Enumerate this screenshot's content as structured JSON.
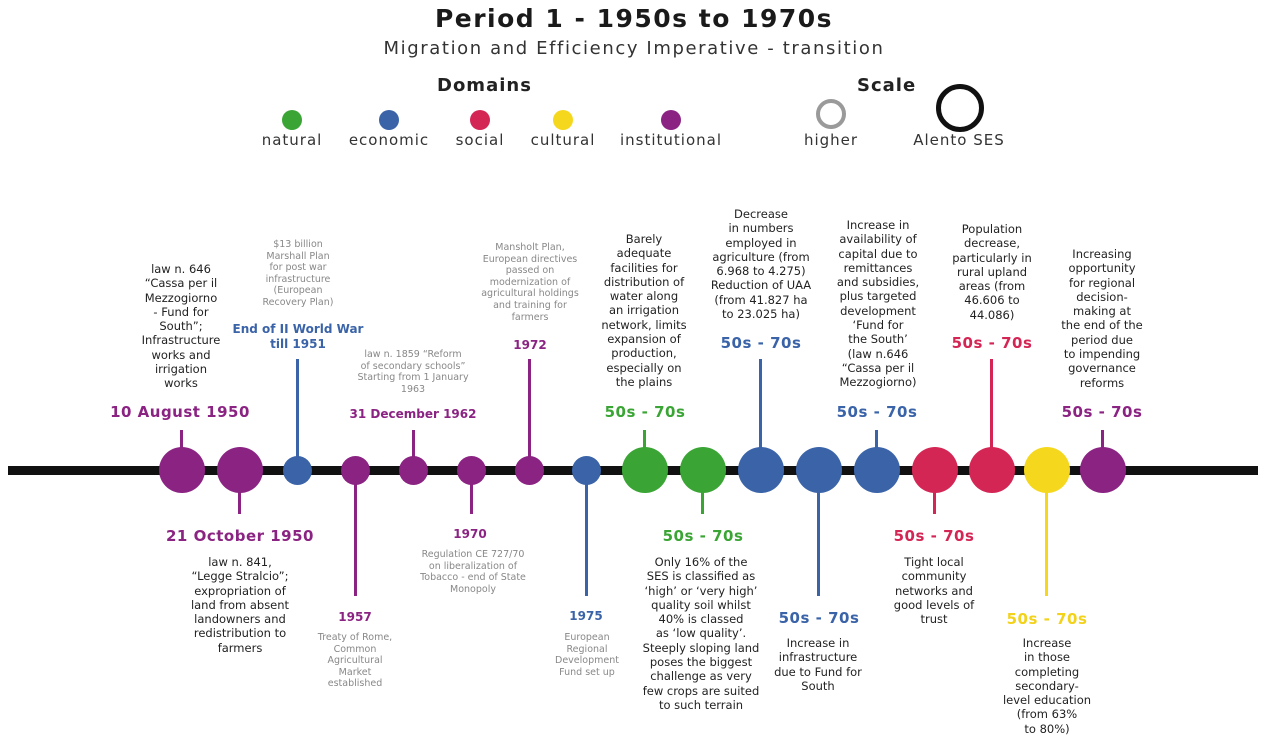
{
  "title": "Period 1 - 1950s to 1970s",
  "subtitle": "Migration and Efficiency Imperative - transition",
  "legend": {
    "domains_title": "Domains",
    "scale_title": "Scale",
    "domains": [
      {
        "label": "natural",
        "color": "#3AA535"
      },
      {
        "label": "economic",
        "color": "#3A63A8"
      },
      {
        "label": "social",
        "color": "#D42655"
      },
      {
        "label": "cultural",
        "color": "#F5D81E"
      },
      {
        "label": "institutional",
        "color": "#8B2383"
      }
    ],
    "scale": [
      {
        "label": "higher"
      },
      {
        "label": "Alento SES"
      }
    ]
  },
  "events": [
    {
      "date": "10 August  1950",
      "text": "law n. 646\n“Cassa per il\nMezzogiorno\n- Fund for\nSouth”;\nInfrastructure\nworks and\nirrigation\nworks",
      "domain": "institutional",
      "scale": "Alento SES"
    },
    {
      "date": "21 October 1950",
      "text": "law n. 841,\n“Legge Stralcio”;\nexpropriation of\nland from absent\nlandowners and\nredistribution to\nfarmers",
      "domain": "institutional",
      "scale": "Alento SES"
    },
    {
      "date": "End of II World War\ntill 1951",
      "text": "$13 billion\nMarshall Plan\nfor post war\ninfrastructure\n(European\nRecovery Plan)",
      "domain": "economic",
      "scale": "higher"
    },
    {
      "date": "1957",
      "text": "Treaty of Rome,\nCommon\nAgricultural\nMarket\nestablished",
      "domain": "institutional",
      "scale": "higher"
    },
    {
      "date": "31 December 1962",
      "text": "law n. 1859 “Reform\nof secondary schools”\nStarting from 1 January\n1963",
      "domain": "institutional",
      "scale": "higher"
    },
    {
      "date": "1970",
      "text": "Regulation CE 727/70\non liberalization of\nTobacco - end of State\nMonopoly",
      "domain": "institutional",
      "scale": "higher"
    },
    {
      "date": "1972",
      "text": "Mansholt Plan,\nEuropean directives\npassed on\nmodernization of\nagricultural holdings\nand training for\nfarmers",
      "domain": "institutional",
      "scale": "higher"
    },
    {
      "date": "1975",
      "text": "European\nRegional\nDevelopment\nFund set up",
      "domain": "economic",
      "scale": "higher"
    },
    {
      "date": "50s - 70s",
      "text": "Barely\nadequate\nfacilities for\ndistribution of\nwater along\nan irrigation\nnetwork, limits\nexpansion of\nproduction,\nespecially on\nthe plains",
      "domain": "natural",
      "scale": "Alento SES"
    },
    {
      "date": "50s - 70s",
      "text": "Only 16% of the\nSES is classified as\n‘high’ or ‘very high’\nquality soil whilst\n40% is classed\nas ‘low quality’.\nSteeply sloping land\nposes the biggest\nchallenge as very\nfew crops are suited\nto such terrain",
      "domain": "natural",
      "scale": "Alento SES"
    },
    {
      "date": "50s - 70s",
      "text": "Decrease\nin numbers\nemployed in\nagriculture (from\n6.968 to 4.275)\nReduction of UAA\n(from 41.827 ha\nto 23.025 ha)",
      "domain": "economic",
      "scale": "Alento SES"
    },
    {
      "date": "50s - 70s",
      "text": "Increase in\ninfrastructure\ndue to Fund for\nSouth",
      "domain": "economic",
      "scale": "Alento SES"
    },
    {
      "date": "50s - 70s",
      "text": "Increase in\navailability of\ncapital due to\nremittances\nand subsidies,\nplus targeted\ndevelopment\n‘Fund for\nthe South’\n(law n.646\n“Cassa per il\nMezzogiorno)",
      "domain": "economic",
      "scale": "Alento SES"
    },
    {
      "date": "50s - 70s",
      "text": "Tight local\ncommunity\nnetworks and\ngood levels of\ntrust",
      "domain": "social",
      "scale": "Alento SES"
    },
    {
      "date": "50s - 70s",
      "text": "Population\ndecrease,\nparticularly in\nrural upland\nareas (from\n46.606 to\n44.086)",
      "domain": "social",
      "scale": "Alento SES"
    },
    {
      "date": "50s - 70s",
      "text": "Increase\nin those\ncompleting\nsecondary-\nlevel education\n(from 63%\nto 80%)",
      "domain": "cultural",
      "scale": "Alento SES"
    },
    {
      "date": "50s - 70s",
      "text": "Increasing\nopportunity\nfor regional\ndecision-\nmaking at\nthe end of the\nperiod due\nto impending\ngovernance\nreforms",
      "domain": "institutional",
      "scale": "Alento SES"
    }
  ]
}
